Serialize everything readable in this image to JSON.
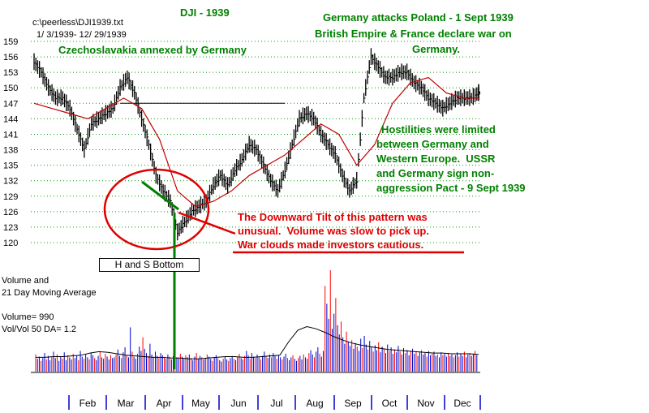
{
  "file_label": "c:\\peerless\\DJI1939.txt",
  "date_range": "1/ 3/1939- 12/ 29/1939",
  "title": "DJI - 1939",
  "annotations": {
    "czech": "Czechoslavakia annexed by Germany",
    "poland": [
      "Germany attacks Poland - 1 Sept 1939",
      "British Empire & France declare war on",
      "Germany."
    ],
    "hostilities": [
      "Hostilities were limited",
      "between Germany and",
      "Western Europe.  USSR",
      "and Germany sign non-",
      "aggression Pact - 9 Sept 1939"
    ],
    "tilt": [
      "The Downward Tilt of this pattern was",
      "unusual.  Volume was slow to pick up.",
      "War clouds made investors cautious."
    ],
    "pattern_label": "H and S Bottom"
  },
  "volume_info": {
    "line1": "Volume and",
    "line2": "21 Day Moving Average",
    "volume": "Volume= 990",
    "ratio": "Vol/Vol 50 DA= 1.2"
  },
  "colors": {
    "green": "#008000",
    "red": "#e00000",
    "ma": "#c00000",
    "grid": "#00a000",
    "vol_blue": "#0000cc",
    "vol_red": "#ff0000"
  },
  "chart_data": {
    "type": "line",
    "title": "DJI - 1939",
    "y_ticks": [
      120,
      123,
      126,
      129,
      132,
      135,
      138,
      141,
      144,
      147,
      150,
      153,
      156,
      159
    ],
    "ylim": [
      119,
      160
    ],
    "months": [
      "Feb",
      "Mar",
      "Apr",
      "May",
      "Jun",
      "Jul",
      "Aug",
      "Sep",
      "Oct",
      "Nov",
      "Dec"
    ],
    "price_series": {
      "name": "DJI",
      "x": [
        0,
        4,
        8,
        12,
        16,
        20,
        24,
        28,
        32,
        36,
        40,
        44,
        48,
        52,
        56,
        60,
        64,
        68,
        72,
        76,
        80,
        84,
        88,
        92,
        96,
        100,
        104,
        108,
        112,
        116,
        120,
        124,
        128,
        132,
        136,
        140,
        144,
        148,
        152,
        156,
        160,
        164,
        168,
        172,
        176,
        180,
        184,
        188,
        192,
        196,
        200,
        204,
        208,
        212,
        216,
        220,
        224,
        228,
        232,
        236,
        240,
        244,
        248
      ],
      "values": [
        155,
        153,
        150,
        148,
        148,
        146,
        142,
        138,
        143,
        144,
        145,
        146,
        150,
        152,
        149,
        144,
        139,
        133,
        130,
        128,
        122,
        124,
        126,
        127,
        128,
        131,
        133,
        131,
        134,
        136,
        139,
        138,
        135,
        132,
        130,
        134,
        139,
        144,
        145,
        144,
        141,
        139,
        137,
        133,
        130,
        132,
        148,
        156,
        154,
        152,
        152,
        153,
        153,
        151,
        150,
        148,
        147,
        146,
        147,
        148,
        148,
        148,
        149
      ]
    },
    "ma_series": {
      "name": "21 Day Moving Average",
      "x": [
        0,
        10,
        20,
        30,
        40,
        50,
        60,
        70,
        80,
        90,
        100,
        110,
        120,
        130,
        140,
        150,
        160,
        170,
        180,
        190,
        200,
        210,
        220,
        230,
        240,
        248
      ],
      "values": [
        147,
        146,
        145,
        144,
        146,
        148,
        146,
        140,
        130,
        127,
        128,
        130,
        133,
        135,
        137,
        140,
        143,
        141,
        135,
        139,
        147,
        151,
        152,
        149,
        148,
        148
      ]
    },
    "reference_line": {
      "from_x": 48,
      "to_x": 140,
      "value": 147
    },
    "volume": {
      "x_count": 248,
      "values": [
        2.4,
        1.8,
        2.1,
        1.5,
        1.9,
        2.6,
        1.7,
        2.2,
        1.6,
        2.0,
        2.8,
        1.9,
        2.4,
        1.5,
        2.1,
        1.8,
        2.7,
        1.6,
        2.3,
        2.0,
        1.7,
        2.5,
        1.9,
        2.2,
        1.6,
        2.9,
        2.1,
        1.8,
        2.4,
        2.0,
        1.7,
        2.6,
        2.3,
        1.9,
        1.6,
        2.2,
        2.8,
        2.0,
        1.8,
        2.5,
        2.1,
        1.7,
        2.3,
        1.9,
        2.0,
        2.4,
        3.1,
        2.2,
        1.9,
        2.7,
        3.4,
        2.3,
        2.0,
        6.2,
        2.8,
        2.1,
        1.8,
        2.5,
        3.5,
        2.9,
        4.8,
        3.2,
        2.6,
        2.2,
        3.9,
        2.4,
        2.0,
        2.8,
        2.2,
        1.9,
        2.6,
        2.3,
        2.0,
        1.8,
        2.4,
        2.1,
        1.7,
        2.2,
        2.9,
        2.0,
        1.9,
        2.5,
        2.1,
        1.8,
        2.3,
        2.0,
        2.4,
        1.9,
        1.6,
        2.1,
        2.6,
        1.8,
        2.2,
        2.0,
        1.7,
        1.9,
        2.4,
        2.1,
        1.8,
        1.5,
        2.0,
        2.3,
        1.9,
        1.6,
        1.4,
        1.8,
        2.1,
        1.7,
        1.5,
        1.9,
        2.2,
        1.8,
        1.6,
        2.0,
        2.5,
        1.9,
        1.7,
        2.2,
        2.9,
        2.3,
        1.8,
        2.6,
        2.1,
        1.9,
        2.4,
        2.0,
        1.7,
        2.2,
        2.8,
        2.1,
        1.9,
        2.4,
        2.0,
        2.6,
        2.2,
        1.8,
        2.3,
        2.0,
        1.7,
        2.1,
        2.5,
        1.9,
        1.6,
        2.0,
        2.3,
        1.8,
        1.5,
        1.9,
        2.2,
        1.7,
        2.4,
        2.0,
        1.8,
        2.6,
        3.0,
        2.4,
        2.0,
        2.8,
        3.4,
        2.5,
        2.1,
        2.9,
        12.0,
        9.5,
        7.4,
        14.2,
        6.0,
        8.1,
        10.3,
        6.5,
        5.2,
        7.0,
        4.8,
        3.9,
        5.6,
        4.2,
        3.6,
        4.4,
        3.2,
        4.0,
        3.5,
        2.9,
        4.6,
        3.3,
        5.0,
        3.8,
        3.1,
        4.3,
        3.4,
        2.8,
        3.7,
        3.0,
        4.1,
        2.7,
        3.5,
        3.2,
        2.6,
        3.8,
        2.9,
        3.4,
        2.5,
        3.1,
        2.7,
        3.6,
        2.8,
        2.4,
        3.3,
        2.6,
        3.0,
        2.3,
        2.9,
        3.2,
        2.5,
        2.8,
        2.2,
        2.7,
        3.0,
        2.4,
        2.6,
        2.1,
        2.9,
        2.3,
        2.5,
        2.8,
        2.2,
        2.4,
        2.0,
        2.7,
        2.3,
        2.5,
        2.1,
        2.6,
        2.2,
        2.4,
        2.0,
        2.3,
        2.7,
        2.1,
        2.5,
        2.2,
        2.8,
        2.0,
        2.4,
        2.6,
        2.2,
        2.5,
        2.9,
        2.3
      ],
      "ma_values": [
        2.0,
        2.0,
        2.1,
        2.1,
        2.2,
        2.3,
        2.6,
        2.8,
        2.7,
        2.5,
        2.3,
        2.2,
        2.1,
        2.0,
        2.0,
        1.9,
        1.9,
        1.8,
        1.8,
        1.9,
        2.0,
        2.1,
        2.1,
        2.0,
        2.0,
        2.1,
        2.2,
        2.3,
        4.2,
        5.8,
        6.3,
        6.0,
        5.5,
        4.9,
        4.4,
        4.0,
        3.7,
        3.5,
        3.3,
        3.1,
        3.0,
        2.9,
        2.8,
        2.7,
        2.6,
        2.6,
        2.5,
        2.5,
        2.5,
        2.4
      ]
    }
  }
}
